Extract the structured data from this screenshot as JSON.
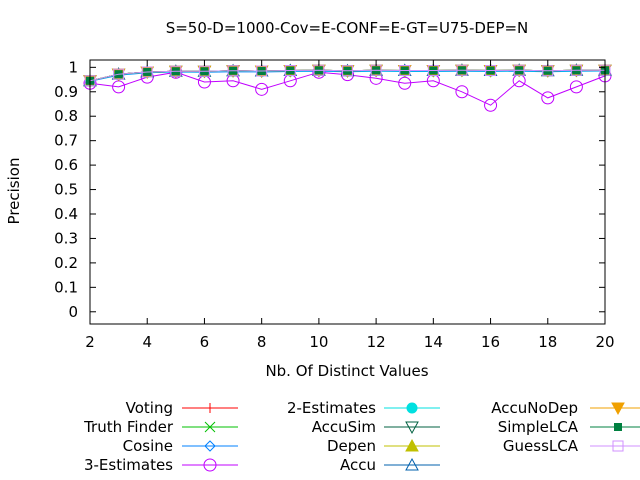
{
  "chart_data": {
    "type": "line",
    "title": "S=50-D=1000-Cov=E-CONF=E-GT=U75-DEP=N",
    "xlabel": "Nb. Of Distinct Values",
    "ylabel": "Precision",
    "xlim": [
      2,
      20
    ],
    "ylim": [
      -0.05,
      1.03
    ],
    "xticks": [
      "2",
      "4",
      "6",
      "8",
      "10",
      "12",
      "14",
      "16",
      "18",
      "20"
    ],
    "yticks": [
      "0",
      "0.1",
      "0.2",
      "0.3",
      "0.4",
      "0.5",
      "0.6",
      "0.7",
      "0.8",
      "0.9",
      "1"
    ],
    "grid": false,
    "legend_position": "bottom",
    "x": [
      2,
      3,
      4,
      5,
      6,
      7,
      8,
      9,
      10,
      11,
      12,
      13,
      14,
      15,
      16,
      17,
      18,
      19,
      20
    ],
    "series": [
      {
        "name": "Voting",
        "color": "#ff0000",
        "marker": "plus",
        "values": [
          0.945,
          0.972,
          0.981,
          0.984,
          0.984,
          0.986,
          0.985,
          0.987,
          0.988,
          0.986,
          0.988,
          0.987,
          0.987,
          0.988,
          0.987,
          0.988,
          0.986,
          0.988,
          0.988
        ]
      },
      {
        "name": "Truth Finder",
        "color": "#00c000",
        "marker": "cross",
        "values": [
          0.945,
          0.972,
          0.981,
          0.984,
          0.984,
          0.986,
          0.985,
          0.987,
          0.988,
          0.986,
          0.988,
          0.987,
          0.987,
          0.988,
          0.987,
          0.988,
          0.986,
          0.988,
          0.988
        ]
      },
      {
        "name": "Cosine",
        "color": "#0080ff",
        "marker": "diamond",
        "values": [
          0.943,
          0.968,
          0.978,
          0.981,
          0.98,
          0.982,
          0.981,
          0.983,
          0.984,
          0.982,
          0.984,
          0.983,
          0.983,
          0.984,
          0.983,
          0.984,
          0.982,
          0.984,
          0.985
        ]
      },
      {
        "name": "3-Estimates",
        "color": "#c000ff",
        "marker": "circle",
        "values": [
          0.935,
          0.92,
          0.96,
          0.98,
          0.94,
          0.945,
          0.91,
          0.945,
          0.98,
          0.97,
          0.955,
          0.935,
          0.945,
          0.9,
          0.845,
          0.945,
          0.875,
          0.92,
          0.965
        ]
      },
      {
        "name": "2-Estimates",
        "color": "#00e0e0",
        "marker": "filled-circle",
        "values": [
          0.944,
          0.97,
          0.979,
          0.982,
          0.982,
          0.984,
          0.983,
          0.985,
          0.986,
          0.984,
          0.986,
          0.985,
          0.985,
          0.986,
          0.985,
          0.986,
          0.984,
          0.986,
          0.986
        ]
      },
      {
        "name": "AccuSim",
        "color": "#006040",
        "marker": "triangle-down",
        "values": [
          0.945,
          0.972,
          0.981,
          0.984,
          0.984,
          0.986,
          0.985,
          0.987,
          0.988,
          0.986,
          0.988,
          0.987,
          0.987,
          0.988,
          0.987,
          0.988,
          0.986,
          0.988,
          0.988
        ]
      },
      {
        "name": "Depen",
        "color": "#c0c000",
        "marker": "filled-triangle",
        "values": [
          0.945,
          0.972,
          0.981,
          0.984,
          0.984,
          0.986,
          0.985,
          0.987,
          0.988,
          0.986,
          0.988,
          0.987,
          0.987,
          0.988,
          0.987,
          0.988,
          0.986,
          0.988,
          0.988
        ]
      },
      {
        "name": "Accu",
        "color": "#0060ad",
        "marker": "triangle",
        "values": [
          0.945,
          0.972,
          0.981,
          0.984,
          0.984,
          0.986,
          0.985,
          0.987,
          0.988,
          0.986,
          0.988,
          0.987,
          0.987,
          0.988,
          0.987,
          0.988,
          0.986,
          0.988,
          0.988
        ]
      },
      {
        "name": "AccuNoDep",
        "color": "#f0a000",
        "marker": "filled-triangle-down",
        "values": [
          0.945,
          0.972,
          0.981,
          0.984,
          0.984,
          0.986,
          0.985,
          0.987,
          0.988,
          0.986,
          0.988,
          0.987,
          0.987,
          0.988,
          0.987,
          0.988,
          0.986,
          0.988,
          0.988
        ]
      },
      {
        "name": "SimpleLCA",
        "color": "#008040",
        "marker": "filled-square",
        "values": [
          0.945,
          0.972,
          0.981,
          0.984,
          0.984,
          0.986,
          0.985,
          0.987,
          0.988,
          0.986,
          0.988,
          0.987,
          0.987,
          0.988,
          0.987,
          0.988,
          0.986,
          0.988,
          0.988
        ]
      },
      {
        "name": "GuessLCA",
        "color": "#d090ff",
        "marker": "square",
        "values": [
          0.945,
          0.972,
          0.981,
          0.984,
          0.984,
          0.986,
          0.985,
          0.987,
          0.988,
          0.986,
          0.988,
          0.987,
          0.987,
          0.988,
          0.987,
          0.988,
          0.986,
          0.988,
          0.988
        ]
      }
    ]
  }
}
